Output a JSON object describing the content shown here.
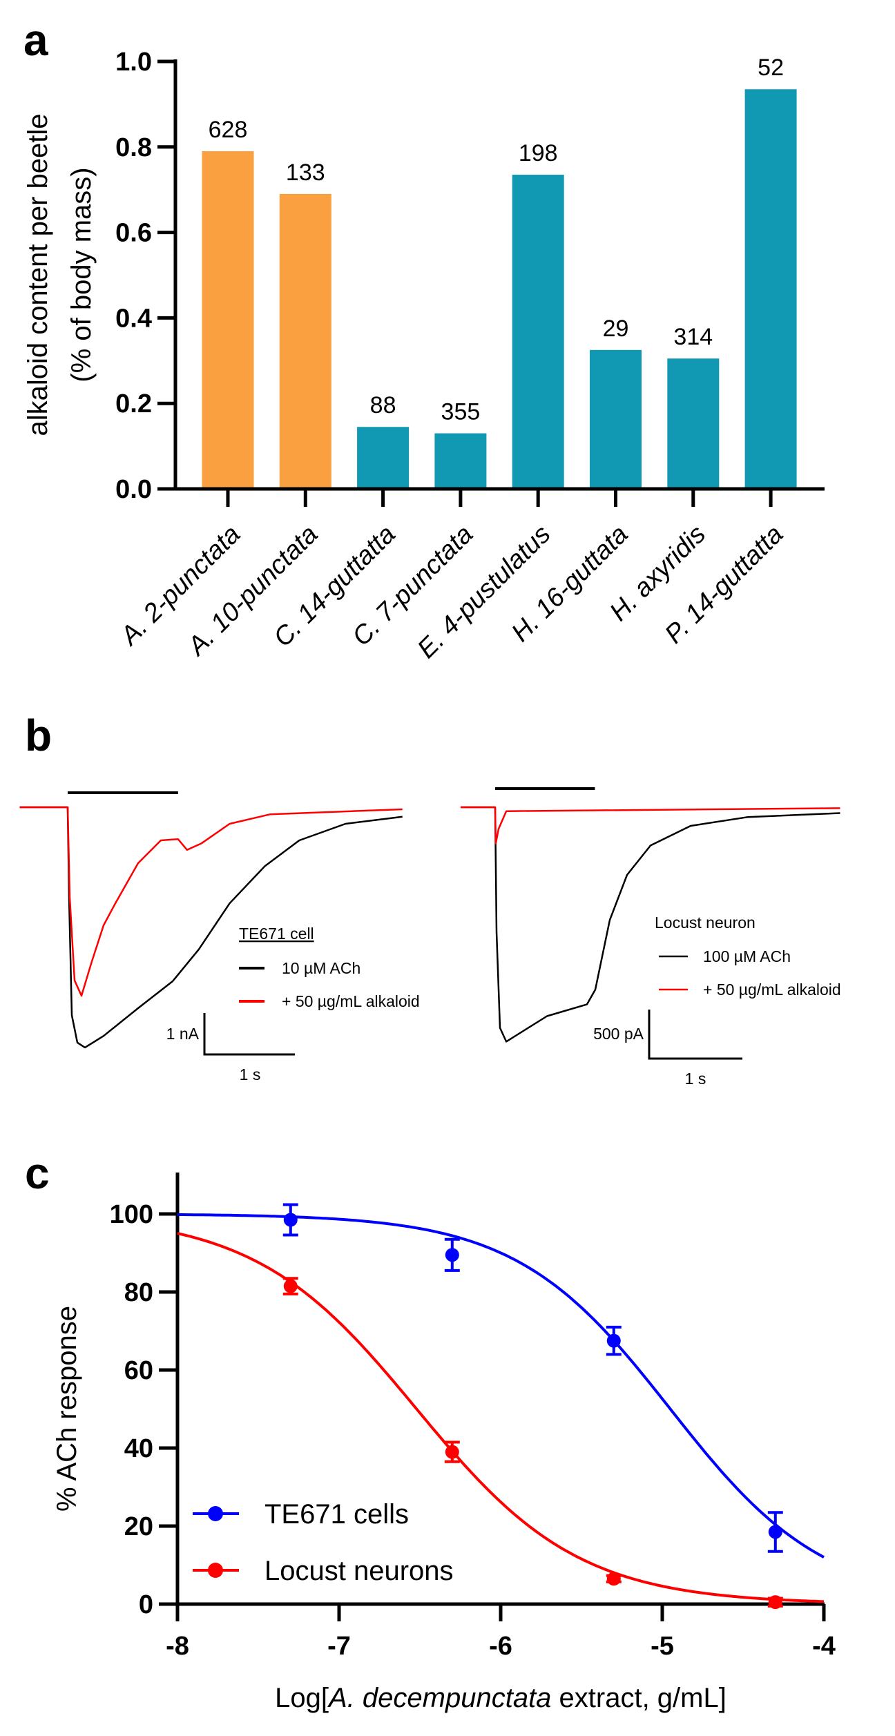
{
  "chart_data": [
    {
      "panel": "a",
      "type": "bar",
      "title": "",
      "xlabel": "",
      "ylabel_lines": [
        "alkaloid content per beetle",
        "(% of body mass)"
      ],
      "ylim": [
        0,
        1.0
      ],
      "yticks": [
        "0.0",
        "0.2",
        "0.4",
        "0.6",
        "0.8",
        "1.0"
      ],
      "categories": [
        "A. 2-punctata",
        "A. 10-punctata",
        "C. 14-guttatta",
        "C. 7-punctata",
        "E. 4-pustulatus",
        "H. 16-guttata",
        "H. axyridis",
        "P. 14-guttatta"
      ],
      "values": [
        0.79,
        0.69,
        0.145,
        0.13,
        0.735,
        0.325,
        0.305,
        0.935
      ],
      "data_labels": [
        "628",
        "133",
        "88",
        "355",
        "198",
        "29",
        "314",
        "52"
      ],
      "bar_colors": [
        "#FBA040",
        "#FBA040",
        "#1198B2",
        "#1198B2",
        "#1198B2",
        "#1198B2",
        "#1198B2",
        "#1198B2"
      ]
    },
    {
      "panel": "b",
      "type": "line",
      "traces": [
        {
          "legend_title": "TE671 cell",
          "stimulus_s": [
            0,
            1.22
          ],
          "scale_bar": {
            "y_label": "1 nA",
            "y_value_nA": 1,
            "x_label": "1 s",
            "x_value_s": 1
          },
          "series": [
            {
              "name": "10 µM ACh",
              "color": "#000000",
              "t_s": [
                -0.53,
                0,
                0.015,
                0.046,
                0.107,
                0.191,
                0.397,
                0.779,
                1.16,
                1.45,
                1.79,
                2.18,
                2.56,
                3.07,
                3.7
              ],
              "i_nA": [
                0,
                0,
                -2.18,
                -5.02,
                -5.68,
                -5.8,
                -5.52,
                -4.85,
                -4.2,
                -3.43,
                -2.32,
                -1.42,
                -0.8,
                -0.4,
                -0.23
              ]
            },
            {
              "name": "+ 50 µg/mL alkaloid",
              "color": "#FF0000",
              "t_s": [
                -0.53,
                0,
                0.023,
                0.076,
                0.153,
                0.267,
                0.397,
                0.527,
                0.779,
                1.03,
                1.22,
                1.32,
                1.48,
                1.79,
                2.24,
                3.7
              ],
              "i_nA": [
                0,
                0,
                -2.18,
                -4.18,
                -4.55,
                -3.72,
                -2.85,
                -2.32,
                -1.35,
                -0.8,
                -0.77,
                -1.03,
                -0.87,
                -0.4,
                -0.17,
                -0.05
              ]
            }
          ]
        },
        {
          "legend_title": "Locust neuron",
          "stimulus_s": [
            0,
            1.07
          ],
          "scale_bar": {
            "y_label": "500 pA",
            "y_value_nA": 0.5,
            "x_label": "1 s",
            "x_value_s": 1
          },
          "series": [
            {
              "name": "100 µM ACh",
              "color": "#000000",
              "t_s": [
                -0.37,
                0,
                0.015,
                0.052,
                0.119,
                0.556,
                0.985,
                1.074,
                1.23,
                1.415,
                1.667,
                2.096,
                2.711,
                3.7
              ],
              "i_nA": [
                0,
                0,
                -1.27,
                -2.25,
                -2.39,
                -2.13,
                -2.01,
                -1.86,
                -1.15,
                -0.69,
                -0.39,
                -0.19,
                -0.1,
                -0.06
              ]
            },
            {
              "name": "+ 50 µg/mL alkaloid",
              "color": "#FF0000",
              "t_s": [
                -0.37,
                0,
                0.007,
                0.037,
                0.119,
                3.7
              ],
              "i_nA": [
                0,
                0,
                -0.37,
                -0.22,
                -0.04,
                -0.01
              ]
            }
          ]
        }
      ]
    },
    {
      "panel": "c",
      "type": "scatter",
      "xlabel_parts": [
        "Log[",
        "A. decempunctata",
        " extract, g/mL]"
      ],
      "ylabel": "% ACh response",
      "xlim": [
        -8,
        -4
      ],
      "ylim": [
        0,
        110
      ],
      "xticks": [
        "-8",
        "-7",
        "-6",
        "-5",
        "-4"
      ],
      "yticks": [
        "0",
        "20",
        "40",
        "60",
        "80",
        "100"
      ],
      "legend_position": "bottom-left",
      "series": [
        {
          "name": "TE671 cells",
          "color": "#0000FF",
          "x": [
            -7.3,
            -6.3,
            -5.3,
            -4.3
          ],
          "y": [
            98.5,
            89.5,
            67.5,
            18.5
          ],
          "err": [
            3.9,
            4,
            3.5,
            5
          ],
          "fit": {
            "top": 100,
            "bottom": 0,
            "logIC50": -4.95,
            "hill": 0.91
          }
        },
        {
          "name": "Locust neurons",
          "color": "#FF0000",
          "x": [
            -7.3,
            -6.3,
            -5.3,
            -4.3
          ],
          "y": [
            81.5,
            39,
            6.5,
            0.5
          ],
          "err": [
            2,
            2.5,
            0.8,
            1
          ],
          "fit": {
            "top": 100,
            "bottom": 0,
            "logIC50": -6.52,
            "hill": 0.866
          }
        }
      ]
    }
  ],
  "panel_labels": [
    "a",
    "b",
    "c"
  ]
}
